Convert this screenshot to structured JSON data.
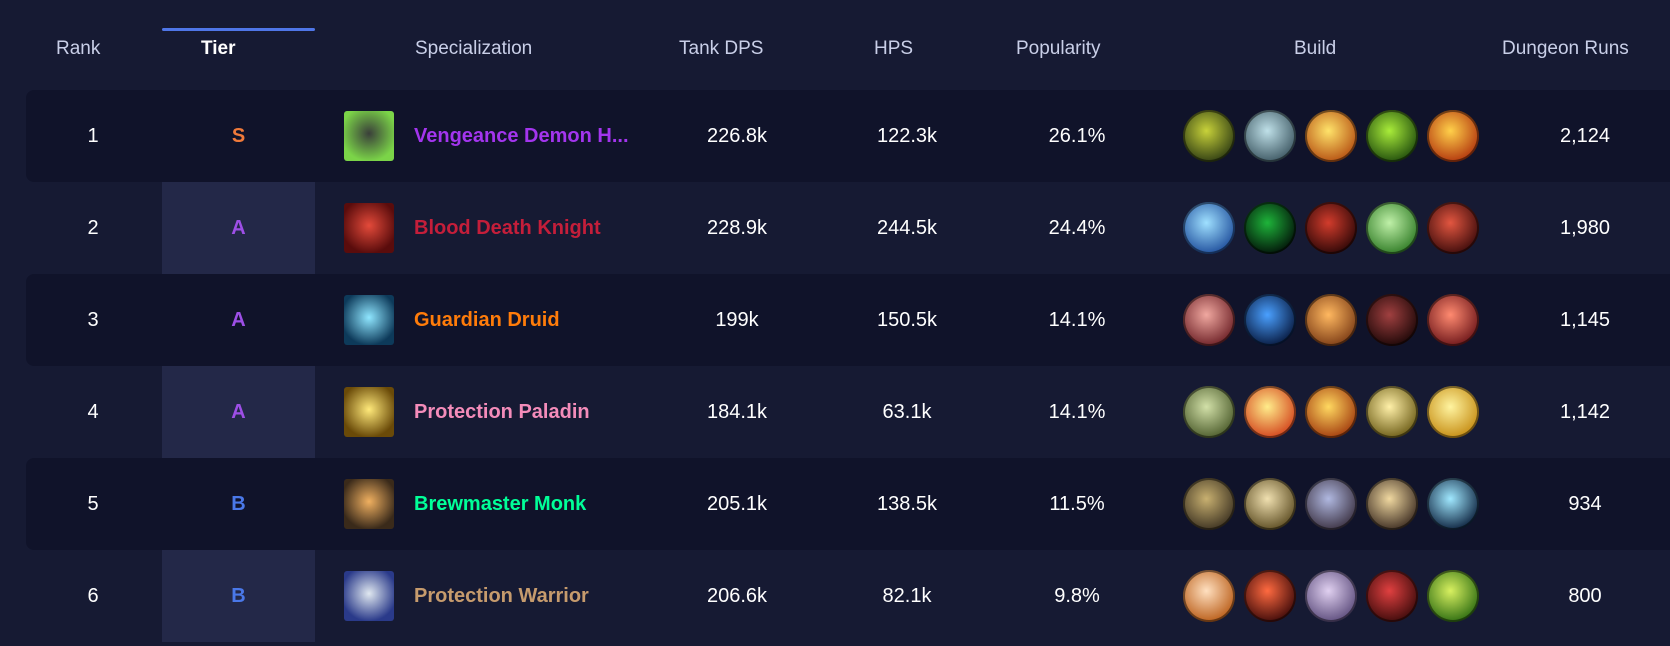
{
  "header": {
    "rank": "Rank",
    "tier": "Tier",
    "specialization": "Specialization",
    "tank_dps": "Tank DPS",
    "hps": "HPS",
    "popularity": "Popularity",
    "build": "Build",
    "dungeon_runs": "Dungeon Runs"
  },
  "tier_colors": {
    "S": "#f07a3a",
    "A": "#9d4fe6",
    "B": "#4a78e8"
  },
  "rows": [
    {
      "rank": "1",
      "tier": "S",
      "spec": "Vengeance Demon H...",
      "spec_color": "#a335ee",
      "spec_icon": [
        "#3a3f3a",
        "#7bd448"
      ],
      "dps": "226.8k",
      "hps": "122.3k",
      "popularity": "26.1%",
      "runs": "2,124",
      "build": [
        [
          "#c8d23a",
          "#2c3a12"
        ],
        [
          "#bfe0e8",
          "#3b5560"
        ],
        [
          "#ffe36a",
          "#b44d10"
        ],
        [
          "#a9ec3a",
          "#1e4a0c"
        ],
        [
          "#ffd04a",
          "#b0320c"
        ]
      ]
    },
    {
      "rank": "2",
      "tier": "A",
      "spec": "Blood Death Knight",
      "spec_color": "#c41e3a",
      "spec_icon": [
        "#e34a3a",
        "#5a0c0c"
      ],
      "dps": "228.9k",
      "hps": "244.5k",
      "popularity": "24.4%",
      "runs": "1,980",
      "build": [
        [
          "#9fe0ff",
          "#1c4b9a"
        ],
        [
          "#1eb43a",
          "#021008"
        ],
        [
          "#d23c2c",
          "#2a0606"
        ],
        [
          "#bff0a8",
          "#2e7a24"
        ],
        [
          "#e25640",
          "#3a0a0a"
        ]
      ]
    },
    {
      "rank": "3",
      "tier": "A",
      "spec": "Guardian Druid",
      "spec_color": "#ff7c0a",
      "spec_icon": [
        "#8fe6ff",
        "#0d3a5a"
      ],
      "dps": "199k",
      "hps": "150.5k",
      "popularity": "14.1%",
      "runs": "1,145",
      "build": [
        [
          "#f0a8a0",
          "#6a1e24"
        ],
        [
          "#4aa0ff",
          "#06163a"
        ],
        [
          "#ffb860",
          "#7a3a14"
        ],
        [
          "#a04040",
          "#1a0606"
        ],
        [
          "#ff8a70",
          "#6a1418"
        ]
      ]
    },
    {
      "rank": "4",
      "tier": "A",
      "spec": "Protection Paladin",
      "spec_color": "#f48cba",
      "spec_icon": [
        "#ffe97a",
        "#6a4a08"
      ],
      "dps": "184.1k",
      "hps": "63.1k",
      "popularity": "14.1%",
      "runs": "1,142",
      "build": [
        [
          "#d2e0a8",
          "#4a5a2a"
        ],
        [
          "#ffec8a",
          "#d2401a"
        ],
        [
          "#ffd860",
          "#a0380c"
        ],
        [
          "#fff0a8",
          "#6a5a14"
        ],
        [
          "#fff4a0",
          "#c48a10"
        ]
      ]
    },
    {
      "rank": "5",
      "tier": "B",
      "spec": "Brewmaster Monk",
      "spec_color": "#00ff98",
      "spec_icon": [
        "#f0b060",
        "#3a2a1a"
      ],
      "dps": "205.1k",
      "hps": "138.5k",
      "popularity": "11.5%",
      "runs": "934",
      "build": [
        [
          "#c8b070",
          "#3a3020"
        ],
        [
          "#f0e0b0",
          "#5a4a20"
        ],
        [
          "#b0b8e0",
          "#3a3040"
        ],
        [
          "#f0d8a0",
          "#3a2a20"
        ],
        [
          "#a0e8ff",
          "#0a1e3a"
        ]
      ]
    },
    {
      "rank": "6",
      "tier": "B",
      "spec": "Protection Warrior",
      "spec_color": "#c69b6d",
      "spec_icon": [
        "#e0e8f0",
        "#2a3a8a"
      ],
      "dps": "206.6k",
      "hps": "82.1k",
      "popularity": "9.8%",
      "runs": "800",
      "build": [
        [
          "#ffe0c0",
          "#b85a14"
        ],
        [
          "#ff6a40",
          "#3a0808"
        ],
        [
          "#e0d0f0",
          "#5a4a7a"
        ],
        [
          "#e04040",
          "#3a0a0a"
        ],
        [
          "#d8f060",
          "#2a6a10"
        ]
      ]
    }
  ]
}
